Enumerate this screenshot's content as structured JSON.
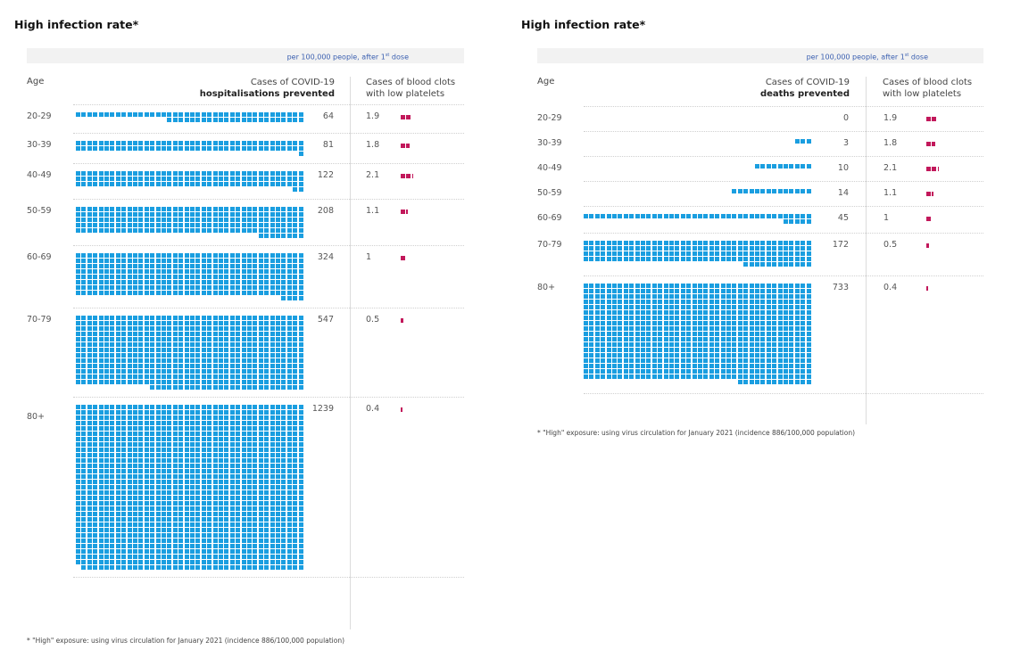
{
  "colors": {
    "prevented": "#1a9ee0",
    "clots": "#c2185b",
    "subtitle": "#3a5fb0"
  },
  "chart_data": [
    {
      "type": "table",
      "title": "High infection rate*",
      "subtitle": "per 100,000 people, after 1st dose",
      "columns": [
        "Age",
        "Cases of COVID-19 hospitalisations prevented",
        "Cases of blood clots with low platelets"
      ],
      "categories": [
        "20-29",
        "30-39",
        "40-49",
        "50-59",
        "60-69",
        "70-79",
        "80+"
      ],
      "series": [
        {
          "name": "Cases of COVID-19 hospitalisations prevented",
          "values": [
            64,
            81,
            122,
            208,
            324,
            547,
            1239
          ]
        },
        {
          "name": "Cases of blood clots with low platelets",
          "values": [
            1.9,
            1.8,
            2.1,
            1.1,
            1,
            0.5,
            0.4
          ]
        }
      ],
      "units_per_row": 40,
      "footnote": "* \"High\" exposure: using virus circulation for January 2021 (incidence 886/100,000 population)"
    },
    {
      "type": "table",
      "title": "High infection rate*",
      "subtitle": "per 100,000 people, after 1st dose",
      "columns": [
        "Age",
        "Cases of COVID-19 deaths prevented",
        "Cases of blood clots with low platelets"
      ],
      "categories": [
        "20-29",
        "30-39",
        "40-49",
        "50-59",
        "60-69",
        "70-79",
        "80+"
      ],
      "series": [
        {
          "name": "Cases of COVID-19 deaths prevented",
          "values": [
            0,
            3,
            10,
            14,
            45,
            172,
            733
          ]
        },
        {
          "name": "Cases of blood clots with low platelets",
          "values": [
            1.9,
            1.8,
            2.1,
            1.1,
            1,
            0.5,
            0.4
          ]
        }
      ],
      "units_per_row": 40,
      "footnote": "* \"High\" exposure: using virus circulation for January 2021 (incidence 886/100,000 population)"
    }
  ],
  "left": {
    "title": "High infection rate*",
    "subtitle_main": "per 100,000 people, after 1",
    "subtitle_sup": "st",
    "subtitle_tail": " dose",
    "hdr_age": "Age",
    "hdr_main_line1": "Cases of COVID-19",
    "hdr_main_line2": "hospitalisations prevented",
    "hdr_clot_line1": "Cases of blood clots",
    "hdr_clot_line2": "with low platelets",
    "footnote": "* \"High\" exposure: using virus circulation for January 2021 (incidence 886/100,000 population)"
  },
  "right": {
    "title": "High infection rate*",
    "subtitle_main": "per 100,000 people, after 1",
    "subtitle_sup": "st",
    "subtitle_tail": " dose",
    "hdr_age": "Age",
    "hdr_main_line1": "Cases of COVID-19",
    "hdr_main_line2": "deaths prevented",
    "hdr_clot_line1": "Cases of blood clots",
    "hdr_clot_line2": "with low platelets",
    "footnote": "* \"High\" exposure: using virus circulation for January 2021 (incidence 886/100,000 population)"
  }
}
